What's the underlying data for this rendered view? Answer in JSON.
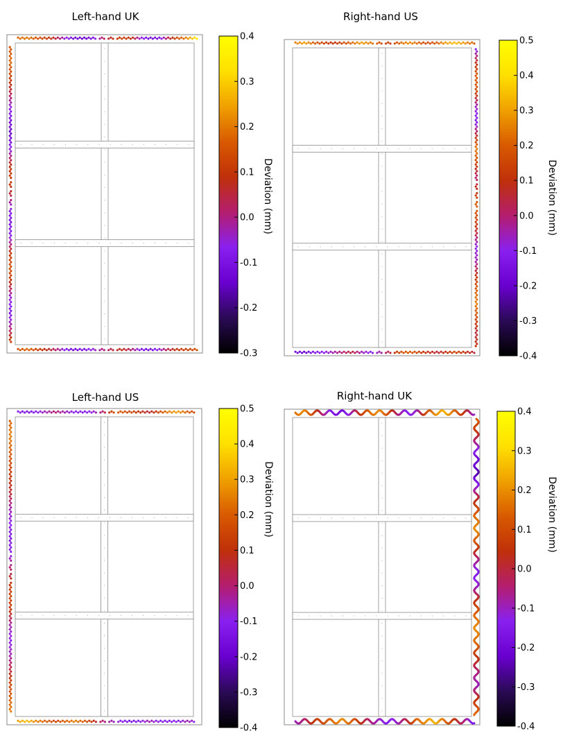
{
  "colors": {
    "colormap": [
      "#000000",
      "#2a0a55",
      "#6a00d0",
      "#8a20f0",
      "#b41e6e",
      "#c0300a",
      "#d85a00",
      "#f0a000",
      "#ffe000",
      "#ffff00"
    ],
    "frame": "#8a8a8a",
    "dots": "#b0b0b0"
  },
  "chart_data": [
    {
      "type": "heatmap",
      "title": "Left-hand UK",
      "colorbar": {
        "label": "Deviation (mm)",
        "range": [
          -0.3,
          0.4
        ],
        "ticks": [
          "0.4",
          "0.3",
          "0.2",
          "0.1",
          "0.0",
          "-0.1",
          "-0.2",
          "-0.3"
        ]
      },
      "edges": [
        {
          "side": "top",
          "values": [
            0.18,
            0.2,
            0.15,
            0.12,
            0.05,
            -0.05,
            -0.12,
            -0.15,
            -0.1,
            0.02,
            0.08,
            0.12,
            0.1,
            -0.05,
            -0.12,
            -0.1,
            0.05,
            0.15,
            0.22,
            0.35
          ]
        },
        {
          "side": "left",
          "values": [
            0.15,
            0.18,
            0.12,
            0.05,
            -0.05,
            -0.12,
            -0.15,
            -0.05,
            0.08,
            0.12,
            0.05,
            -0.08,
            -0.12,
            -0.05,
            0.1,
            0.15,
            0.08,
            -0.05,
            -0.1,
            0.0,
            0.12
          ]
        },
        {
          "side": "bottom",
          "values": [
            0.15,
            0.18,
            0.12,
            0.08,
            0.02,
            -0.08,
            -0.12,
            -0.1,
            -0.05,
            0.0,
            0.05,
            0.08,
            0.02,
            -0.08,
            -0.12,
            -0.05,
            0.05,
            0.1,
            0.12,
            0.15
          ]
        }
      ]
    },
    {
      "type": "heatmap",
      "title": "Right-hand US",
      "colorbar": {
        "label": "Deviation (mm)",
        "range": [
          -0.4,
          0.5
        ],
        "ticks": [
          "0.5",
          "0.4",
          "0.3",
          "0.2",
          "0.1",
          "0.0",
          "-0.1",
          "-0.2",
          "-0.3",
          "-0.4"
        ]
      },
      "edges": [
        {
          "side": "top",
          "values": [
            0.25,
            0.3,
            0.2,
            0.15,
            0.1,
            0.15,
            0.22,
            0.3,
            0.25,
            0.18,
            0.12,
            0.2,
            0.28,
            0.22,
            0.15,
            0.2,
            0.3,
            0.35,
            0.28,
            0.2
          ]
        },
        {
          "side": "right",
          "values": [
            -0.1,
            0.1,
            0.2,
            0.15,
            -0.05,
            -0.15,
            0.05,
            0.25,
            0.15,
            0.0,
            0.1,
            0.2,
            0.15,
            0.05,
            -0.1,
            -0.05,
            0.1,
            0.2,
            0.25,
            0.15,
            0.05,
            0.1
          ]
        },
        {
          "side": "bottom",
          "values": [
            -0.15,
            -0.2,
            -0.12,
            -0.1,
            -0.05,
            0.0,
            0.05,
            -0.05,
            -0.1,
            -0.05,
            0.05,
            0.15,
            0.2,
            0.15,
            0.1,
            0.05,
            0.1,
            0.15,
            0.1,
            0.05
          ]
        }
      ]
    },
    {
      "type": "heatmap",
      "title": "Left-hand US",
      "colorbar": {
        "label": "Deviation (mm)",
        "range": [
          -0.4,
          0.5
        ],
        "ticks": [
          "0.5",
          "0.4",
          "0.3",
          "0.2",
          "0.1",
          "0.0",
          "-0.1",
          "-0.2",
          "-0.3",
          "-0.4"
        ]
      },
      "edges": [
        {
          "side": "top",
          "values": [
            -0.1,
            -0.15,
            -0.1,
            -0.05,
            0.0,
            -0.05,
            -0.1,
            -0.12,
            -0.08,
            0.0,
            0.15,
            0.2,
            0.15,
            0.1,
            0.05,
            0.15,
            0.25,
            0.3,
            0.2,
            0.15
          ]
        },
        {
          "side": "left",
          "values": [
            0.2,
            0.25,
            0.2,
            0.15,
            0.1,
            0.05,
            -0.05,
            -0.1,
            -0.15,
            -0.1,
            0.0,
            0.1,
            0.15,
            0.1,
            -0.05,
            -0.1,
            -0.05,
            0.05,
            0.15,
            0.2,
            0.25
          ]
        },
        {
          "side": "bottom",
          "values": [
            0.3,
            0.35,
            0.25,
            0.2,
            0.15,
            0.2,
            0.25,
            0.2,
            0.1,
            0.0,
            -0.05,
            -0.1,
            -0.15,
            -0.1,
            -0.05,
            -0.1,
            -0.12,
            -0.1,
            -0.05,
            -0.1
          ]
        }
      ]
    },
    {
      "type": "heatmap",
      "title": "Right-hand UK",
      "colorbar": {
        "label": "Deviation (mm)",
        "range": [
          -0.4,
          0.4
        ],
        "ticks": [
          "0.4",
          "0.3",
          "0.2",
          "0.1",
          "0.0",
          "-0.1",
          "-0.2",
          "-0.3",
          "-0.4"
        ]
      },
      "edges": [
        {
          "side": "top",
          "values": [
            0.15,
            0.2,
            0.1,
            -0.05,
            -0.15,
            -0.2,
            -0.1,
            0.05,
            0.15,
            0.2,
            0.1,
            -0.05,
            -0.15,
            -0.1,
            0.1,
            0.2,
            0.25,
            0.15,
            0.05,
            -0.1
          ]
        },
        {
          "side": "right",
          "values": [
            0.15,
            0.05,
            -0.1,
            -0.2,
            -0.25,
            -0.1,
            0.05,
            0.15,
            0.2,
            0.1,
            -0.05,
            -0.15,
            -0.1,
            0.05,
            0.15,
            0.2,
            0.15,
            0.05,
            -0.05,
            -0.1,
            0.05,
            0.15
          ]
        },
        {
          "side": "bottom",
          "values": [
            -0.1,
            -0.05,
            0.05,
            0.1,
            0.15,
            0.2,
            0.15,
            0.05,
            -0.05,
            -0.1,
            -0.15,
            -0.1,
            0.0,
            0.15,
            0.2,
            0.25,
            0.15,
            0.05,
            -0.05,
            -0.15
          ]
        }
      ]
    }
  ]
}
